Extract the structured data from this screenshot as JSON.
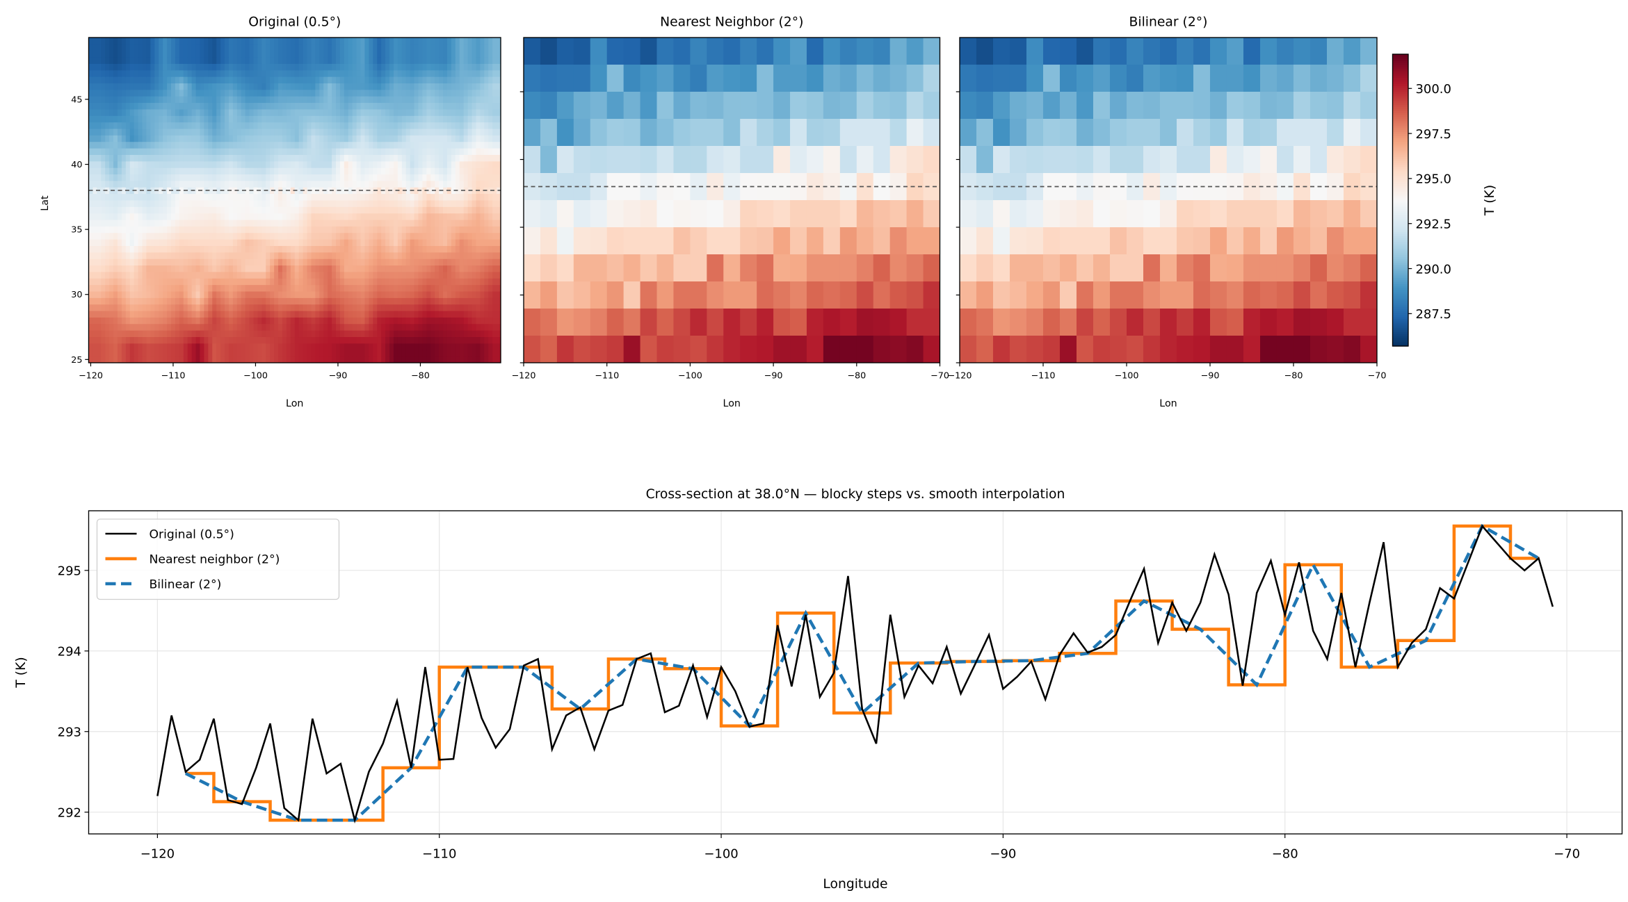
{
  "colors": {
    "nearest": "#ff7f0e",
    "bilinear": "#1f77b4",
    "original": "#000000",
    "refline": "#555555",
    "grid": "#e6e6e6"
  },
  "colorbar": {
    "label": "T (K)",
    "cmap": "RdBu_r",
    "vmin": 285.7,
    "vmax": 301.9,
    "ticks": [
      287.5,
      290.0,
      292.5,
      295.0,
      297.5,
      300.0
    ],
    "tick_labels": [
      "287.5",
      "290.0",
      "292.5",
      "295.0",
      "297.5",
      "300.0"
    ]
  },
  "chart_data": [
    {
      "type": "heatmap",
      "title": "Original (0.5°)",
      "xlabel": "Lon",
      "ylabel": "Lat",
      "resolution_deg": 0.5,
      "xlim": [
        -120.25,
        -70.25
      ],
      "ylim": [
        24.75,
        49.75
      ],
      "xticks": [
        -120,
        -110,
        -100,
        -90,
        -80
      ],
      "xtick_labels": [
        "−120",
        "−110",
        "−100",
        "−90",
        "−80"
      ],
      "yticks": [
        25,
        30,
        35,
        40,
        45
      ],
      "ytick_labels": [
        "25",
        "30",
        "35",
        "40",
        "45"
      ],
      "reference_line_lat": 38.0
    },
    {
      "type": "heatmap",
      "title": "Nearest Neighbor (2°)",
      "xlabel": "Lon",
      "xlim": [
        -120,
        -70
      ],
      "ylim": [
        25,
        49
      ],
      "xticks": [
        -120,
        -110,
        -100,
        -90,
        -80,
        -70
      ],
      "xtick_labels": [
        "−120",
        "−110",
        "−100",
        "−90",
        "−80",
        "−70"
      ],
      "yticks": [
        25,
        30,
        35,
        40,
        45
      ],
      "reference_line_lat": 38.0,
      "x_centers": [
        -119,
        -117,
        -115,
        -113,
        -111,
        -109,
        -107,
        -105,
        -103,
        -101,
        -99,
        -97,
        -95,
        -93,
        -91,
        -89,
        -87,
        -85,
        -83,
        -81,
        -79,
        -77,
        -75,
        -73,
        -71
      ],
      "y_centers_north_to_south": [
        48,
        46,
        44,
        42,
        40,
        38,
        36,
        34,
        32,
        30,
        28,
        26
      ],
      "values": [
        [
          287.0,
          286.6,
          287.1,
          287.0,
          288.7,
          287.4,
          287.3,
          286.8,
          287.9,
          287.6,
          288.4,
          287.9,
          287.6,
          288.3,
          287.8,
          288.8,
          289.3,
          287.5,
          288.8,
          288.3,
          288.6,
          288.4,
          289.8,
          289.2,
          290.0
        ],
        [
          288.0,
          287.8,
          287.9,
          287.9,
          288.9,
          290.3,
          288.6,
          289.0,
          289.3,
          288.6,
          288.2,
          289.2,
          289.0,
          288.9,
          290.3,
          289.2,
          289.2,
          288.9,
          289.8,
          289.6,
          290.2,
          289.8,
          290.0,
          290.4,
          291.3
        ],
        [
          288.6,
          288.4,
          289.2,
          289.8,
          290.0,
          289.3,
          289.9,
          289.1,
          290.5,
          289.7,
          290.2,
          290.1,
          290.4,
          290.4,
          290.3,
          289.9,
          290.8,
          290.6,
          290.1,
          290.2,
          291.1,
          290.6,
          290.5,
          291.5,
          291.0
        ],
        [
          289.5,
          290.4,
          288.9,
          289.7,
          290.5,
          290.9,
          290.8,
          289.9,
          290.3,
          290.8,
          291.0,
          291.0,
          290.4,
          291.9,
          291.2,
          290.8,
          292.2,
          291.1,
          291.2,
          292.3,
          292.3,
          292.3,
          291.6,
          293.2,
          292.3
        ],
        [
          291.9,
          290.2,
          292.4,
          291.8,
          291.7,
          291.8,
          291.8,
          291.7,
          292.2,
          291.5,
          291.5,
          292.3,
          292.6,
          291.8,
          291.8,
          294.5,
          292.8,
          293.3,
          294.1,
          292.0,
          293.2,
          292.3,
          294.6,
          295.0,
          295.4
        ],
        [
          292.48,
          292.13,
          291.9,
          291.9,
          292.55,
          293.8,
          293.8,
          293.28,
          293.9,
          293.78,
          293.07,
          294.47,
          293.23,
          293.85,
          293.87,
          293.88,
          293.97,
          294.62,
          294.27,
          293.58,
          295.07,
          293.8,
          294.13,
          295.55,
          295.15
        ],
        [
          293.2,
          292.9,
          294.0,
          293.0,
          293.3,
          294.1,
          294.3,
          294.5,
          293.8,
          294.0,
          293.9,
          293.8,
          294.3,
          295.6,
          295.5,
          295.3,
          295.7,
          295.7,
          295.7,
          295.4,
          296.5,
          296.2,
          296.0,
          296.7,
          295.9
        ],
        [
          294.2,
          294.9,
          293.4,
          294.8,
          294.9,
          295.5,
          295.4,
          295.4,
          295.4,
          296.2,
          295.8,
          295.4,
          295.4,
          296.0,
          296.1,
          297.0,
          296.0,
          296.8,
          295.8,
          297.3,
          296.7,
          296.3,
          297.6,
          297.0,
          297.0
        ],
        [
          295.3,
          295.8,
          295.4,
          296.6,
          296.6,
          296.3,
          296.7,
          296.0,
          296.6,
          295.8,
          295.8,
          298.3,
          296.7,
          297.9,
          298.3,
          296.8,
          296.9,
          297.5,
          297.5,
          297.5,
          297.9,
          298.6,
          297.7,
          298.0,
          298.6
        ],
        [
          296.5,
          297.2,
          296.1,
          296.4,
          296.9,
          297.4,
          295.9,
          298.2,
          297.3,
          298.2,
          298.2,
          297.6,
          297.3,
          297.3,
          298.4,
          298.1,
          297.8,
          298.5,
          298.3,
          298.5,
          299.1,
          298.3,
          298.8,
          299.0,
          299.7
        ],
        [
          298.5,
          298.2,
          297.4,
          297.6,
          297.9,
          298.6,
          298.1,
          299.3,
          298.6,
          299.2,
          299.9,
          299.2,
          300.0,
          299.5,
          300.1,
          298.9,
          298.7,
          300.1,
          300.4,
          300.2,
          300.7,
          300.6,
          300.4,
          299.8,
          299.8
        ],
        [
          299.0,
          298.6,
          299.6,
          299.1,
          299.3,
          299.5,
          300.8,
          298.9,
          299.4,
          299.3,
          299.1,
          299.6,
          300.0,
          300.2,
          300.3,
          300.7,
          300.7,
          300.2,
          301.6,
          301.6,
          301.6,
          301.2,
          301.1,
          301.3,
          300.5
        ]
      ]
    },
    {
      "type": "heatmap",
      "title": "Bilinear (2°)",
      "xlabel": "Lon",
      "xlim": [
        -120,
        -70
      ],
      "ylim": [
        25,
        49
      ],
      "xticks": [
        -120,
        -110,
        -100,
        -90,
        -80,
        -70
      ],
      "xtick_labels": [
        "−120",
        "−110",
        "−100",
        "−90",
        "−80",
        "−70"
      ],
      "yticks": [
        25,
        30,
        35,
        40,
        45
      ],
      "reference_line_lat": 38.0,
      "x_centers": [
        -119,
        -117,
        -115,
        -113,
        -111,
        -109,
        -107,
        -105,
        -103,
        -101,
        -99,
        -97,
        -95,
        -93,
        -91,
        -89,
        -87,
        -85,
        -83,
        -81,
        -79,
        -77,
        -75,
        -73,
        -71
      ],
      "y_centers_north_to_south": [
        48,
        46,
        44,
        42,
        40,
        38,
        36,
        34,
        32,
        30,
        28,
        26
      ],
      "values": [
        [
          287.0,
          286.6,
          287.1,
          287.0,
          288.7,
          287.4,
          287.3,
          286.8,
          287.9,
          287.6,
          288.4,
          287.9,
          287.6,
          288.3,
          287.8,
          288.8,
          289.3,
          287.5,
          288.8,
          288.3,
          288.6,
          288.4,
          289.8,
          289.2,
          290.0
        ],
        [
          288.0,
          287.8,
          287.9,
          287.9,
          288.9,
          290.3,
          288.6,
          289.0,
          289.3,
          288.6,
          288.2,
          289.2,
          289.0,
          288.9,
          290.3,
          289.2,
          289.2,
          288.9,
          289.8,
          289.6,
          290.2,
          289.8,
          290.0,
          290.4,
          291.3
        ],
        [
          288.6,
          288.4,
          289.2,
          289.8,
          290.0,
          289.3,
          289.9,
          289.1,
          290.5,
          289.7,
          290.2,
          290.1,
          290.4,
          290.4,
          290.3,
          289.9,
          290.8,
          290.6,
          290.1,
          290.2,
          291.1,
          290.6,
          290.5,
          291.5,
          291.0
        ],
        [
          289.5,
          290.4,
          288.9,
          289.7,
          290.5,
          290.9,
          290.8,
          289.9,
          290.3,
          290.8,
          291.0,
          291.0,
          290.4,
          291.9,
          291.2,
          290.8,
          292.2,
          291.1,
          291.2,
          292.3,
          292.3,
          292.3,
          291.6,
          293.2,
          292.3
        ],
        [
          291.9,
          290.2,
          292.4,
          291.8,
          291.7,
          291.8,
          291.8,
          291.7,
          292.2,
          291.5,
          291.5,
          292.3,
          292.6,
          291.8,
          291.8,
          294.5,
          292.8,
          293.3,
          294.1,
          292.0,
          293.2,
          292.3,
          294.6,
          295.0,
          295.4
        ],
        [
          292.48,
          292.13,
          291.9,
          291.9,
          292.55,
          293.8,
          293.8,
          293.28,
          293.9,
          293.78,
          293.07,
          294.47,
          293.23,
          293.85,
          293.87,
          293.88,
          293.97,
          294.62,
          294.27,
          293.58,
          295.07,
          293.8,
          294.13,
          295.55,
          295.15
        ],
        [
          293.2,
          292.9,
          294.0,
          293.0,
          293.3,
          294.1,
          294.3,
          294.5,
          293.8,
          294.0,
          293.9,
          293.8,
          294.3,
          295.6,
          295.5,
          295.3,
          295.7,
          295.7,
          295.7,
          295.4,
          296.5,
          296.2,
          296.0,
          296.7,
          295.9
        ],
        [
          294.2,
          294.9,
          293.4,
          294.8,
          294.9,
          295.5,
          295.4,
          295.4,
          295.4,
          296.2,
          295.8,
          295.4,
          295.4,
          296.0,
          296.1,
          297.0,
          296.0,
          296.8,
          295.8,
          297.3,
          296.7,
          296.3,
          297.6,
          297.0,
          297.0
        ],
        [
          295.3,
          295.8,
          295.4,
          296.6,
          296.6,
          296.3,
          296.7,
          296.0,
          296.6,
          295.8,
          295.8,
          298.3,
          296.7,
          297.9,
          298.3,
          296.8,
          296.9,
          297.5,
          297.5,
          297.5,
          297.9,
          298.6,
          297.7,
          298.0,
          298.6
        ],
        [
          296.5,
          297.2,
          296.1,
          296.4,
          296.9,
          297.4,
          295.9,
          298.2,
          297.3,
          298.2,
          298.2,
          297.6,
          297.3,
          297.3,
          298.4,
          298.1,
          297.8,
          298.5,
          298.3,
          298.5,
          299.1,
          298.3,
          298.8,
          299.0,
          299.7
        ],
        [
          298.5,
          298.2,
          297.4,
          297.6,
          297.9,
          298.6,
          298.1,
          299.3,
          298.6,
          299.2,
          299.9,
          299.2,
          300.0,
          299.5,
          300.1,
          298.9,
          298.7,
          300.1,
          300.4,
          300.2,
          300.7,
          300.6,
          300.4,
          299.8,
          299.8
        ],
        [
          299.0,
          298.6,
          299.6,
          299.1,
          299.3,
          299.5,
          300.8,
          298.9,
          299.4,
          299.3,
          299.1,
          299.6,
          300.0,
          300.2,
          300.3,
          300.7,
          300.7,
          300.2,
          301.6,
          301.6,
          301.6,
          301.2,
          301.1,
          301.3,
          300.5
        ]
      ]
    },
    {
      "type": "line",
      "title": "Cross-section at 38.0°N  —  blocky steps vs. smooth interpolation",
      "xlabel": "Longitude",
      "ylabel": "T (K)",
      "xlim": [
        -122.44,
        -68.04
      ],
      "ylim": [
        291.73,
        295.74
      ],
      "xticks": [
        -120,
        -110,
        -100,
        -90,
        -80,
        -70
      ],
      "xtick_labels": [
        "−120",
        "−110",
        "−100",
        "−90",
        "−80",
        "−70"
      ],
      "yticks": [
        292,
        293,
        294,
        295
      ],
      "ytick_labels": [
        "292",
        "293",
        "294",
        "295"
      ],
      "grid": true,
      "legend_position": "upper-left",
      "series": [
        {
          "name": "Original (0.5°)",
          "style": "solid-thin",
          "x_start": -120,
          "x_step": 0.5,
          "values": [
            292.2,
            293.2,
            292.5,
            292.65,
            293.16,
            292.15,
            292.1,
            292.55,
            293.1,
            292.05,
            291.9,
            293.16,
            292.48,
            292.6,
            291.9,
            292.5,
            292.85,
            293.38,
            292.55,
            293.8,
            292.65,
            292.66,
            293.8,
            293.17,
            292.8,
            293.03,
            293.82,
            293.9,
            292.78,
            293.2,
            293.3,
            292.78,
            293.26,
            293.33,
            293.9,
            293.97,
            293.24,
            293.32,
            293.82,
            293.18,
            293.8,
            293.5,
            293.06,
            293.1,
            294.32,
            293.56,
            294.45,
            293.43,
            293.73,
            294.93,
            293.28,
            292.85,
            294.45,
            293.43,
            293.82,
            293.6,
            294.05,
            293.47,
            293.83,
            294.2,
            293.53,
            293.68,
            293.87,
            293.4,
            293.95,
            294.22,
            293.98,
            294.05,
            294.2,
            294.62,
            295.02,
            294.1,
            294.6,
            294.25,
            294.6,
            295.2,
            294.7,
            293.57,
            294.72,
            295.12,
            294.45,
            295.1,
            294.25,
            293.9,
            294.72,
            293.8,
            294.6,
            295.35,
            293.8,
            294.1,
            294.27,
            294.78,
            294.65,
            295.1,
            295.55,
            295.35,
            295.15,
            295.0,
            295.15,
            294.55
          ]
        },
        {
          "name": "Nearest neighbor (2°)",
          "style": "steps",
          "x": [
            -119,
            -117,
            -115,
            -113,
            -111,
            -109,
            -107,
            -105,
            -103,
            -101,
            -99,
            -97,
            -95,
            -93,
            -91,
            -89,
            -87,
            -85,
            -83,
            -81,
            -79,
            -77,
            -75,
            -73,
            -71
          ],
          "values": [
            292.48,
            292.13,
            291.9,
            291.9,
            292.55,
            293.8,
            293.8,
            293.28,
            293.9,
            293.78,
            293.07,
            294.47,
            293.23,
            293.85,
            293.87,
            293.88,
            293.97,
            294.62,
            294.27,
            293.58,
            295.07,
            293.8,
            294.13,
            295.55,
            295.15
          ]
        },
        {
          "name": "Bilinear (2°)",
          "style": "dashed",
          "x": [
            -119,
            -117,
            -115,
            -113,
            -111,
            -109,
            -107,
            -105,
            -103,
            -101,
            -99,
            -97,
            -95,
            -93,
            -91,
            -89,
            -87,
            -85,
            -83,
            -81,
            -79,
            -77,
            -75,
            -73,
            -71
          ],
          "values": [
            292.48,
            292.13,
            291.9,
            291.9,
            292.55,
            293.8,
            293.8,
            293.28,
            293.9,
            293.78,
            293.07,
            294.47,
            293.23,
            293.85,
            293.87,
            293.88,
            293.97,
            294.62,
            294.27,
            293.58,
            295.07,
            293.8,
            294.13,
            295.55,
            295.15
          ]
        }
      ]
    }
  ]
}
